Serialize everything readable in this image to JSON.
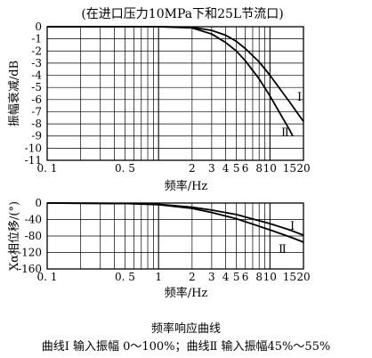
{
  "header": {
    "condition": "(在进口压力10MPa下和25L节流口)"
  },
  "caption": {
    "title": "频率响应曲线",
    "subtitle": "曲线Ⅰ  输入振幅 0～100%；曲线Ⅱ  输入振幅45%～55%"
  },
  "chart_data": [
    {
      "type": "line",
      "x_scale": "log",
      "xlim": [
        0.1,
        20
      ],
      "ylim": [
        -11,
        0
      ],
      "xlabel": "频率/Hz",
      "ylabel": "振幅衰减/dB",
      "x_tick_labels": [
        {
          "v": 0.1,
          "t": "0. 1"
        },
        {
          "v": 0.5,
          "t": "0. 5"
        },
        {
          "v": 2,
          "t": "2"
        },
        {
          "v": 3,
          "t": "3"
        },
        {
          "v": 4,
          "t": "4"
        },
        {
          "v": 5,
          "t": "5"
        },
        {
          "v": 6,
          "t": "6"
        },
        {
          "v": 8,
          "t": "8"
        },
        {
          "v": 10,
          "t": "10"
        },
        {
          "v": 15,
          "t": "15"
        },
        {
          "v": 20,
          "t": "20"
        }
      ],
      "y_ticks": [
        0,
        -1,
        -2,
        -3,
        -4,
        -5,
        -6,
        -7,
        -8,
        -9,
        -10,
        -11
      ],
      "grid": true,
      "series": [
        {
          "name": "Ⅰ",
          "x": [
            0.1,
            1,
            2,
            3,
            4,
            5,
            6,
            8,
            10,
            15,
            20
          ],
          "y": [
            0,
            0,
            -0.05,
            -0.3,
            -0.7,
            -1.2,
            -1.8,
            -2.9,
            -4.0,
            -6.2,
            -7.8
          ]
        },
        {
          "name": "Ⅱ",
          "x": [
            0.1,
            1,
            2,
            3,
            4,
            5,
            6,
            8,
            10,
            15,
            16
          ],
          "y": [
            0,
            0,
            -0.1,
            -0.6,
            -1.3,
            -2.0,
            -2.8,
            -4.3,
            -5.7,
            -8.5,
            -9.0
          ]
        }
      ]
    },
    {
      "type": "line",
      "x_scale": "log",
      "xlim": [
        0.1,
        20
      ],
      "ylim": [
        -160,
        0
      ],
      "xlabel": "频率/Hz",
      "ylabel": "Xα相位移/(°)",
      "x_tick_labels": [
        {
          "v": 0.1,
          "t": "0. 1"
        },
        {
          "v": 0.5,
          "t": "0. 5"
        },
        {
          "v": 1,
          "t": "1"
        },
        {
          "v": 2,
          "t": "2"
        },
        {
          "v": 3,
          "t": "3"
        },
        {
          "v": 4,
          "t": "4"
        },
        {
          "v": 5,
          "t": "5"
        },
        {
          "v": 6,
          "t": "6"
        },
        {
          "v": 8,
          "t": "8"
        },
        {
          "v": 10,
          "t": "10"
        },
        {
          "v": 15,
          "t": "15"
        },
        {
          "v": 20,
          "t": "20"
        }
      ],
      "y_ticks": [
        0,
        -40,
        -80,
        -120,
        -160
      ],
      "y_tick_labels": [
        "0",
        "-40",
        "-80",
        "-120",
        "-160"
      ],
      "grid": true,
      "series": [
        {
          "name": "Ⅰ",
          "x": [
            0.1,
            0.5,
            1,
            2,
            3,
            5,
            10,
            15,
            20
          ],
          "y": [
            0,
            -1,
            -3,
            -10,
            -17,
            -28,
            -50,
            -65,
            -78
          ]
        },
        {
          "name": "Ⅱ",
          "x": [
            0.1,
            0.5,
            1,
            2,
            3,
            5,
            10,
            15,
            20
          ],
          "y": [
            0,
            -1,
            -4,
            -13,
            -23,
            -38,
            -65,
            -82,
            -95
          ]
        }
      ]
    }
  ]
}
